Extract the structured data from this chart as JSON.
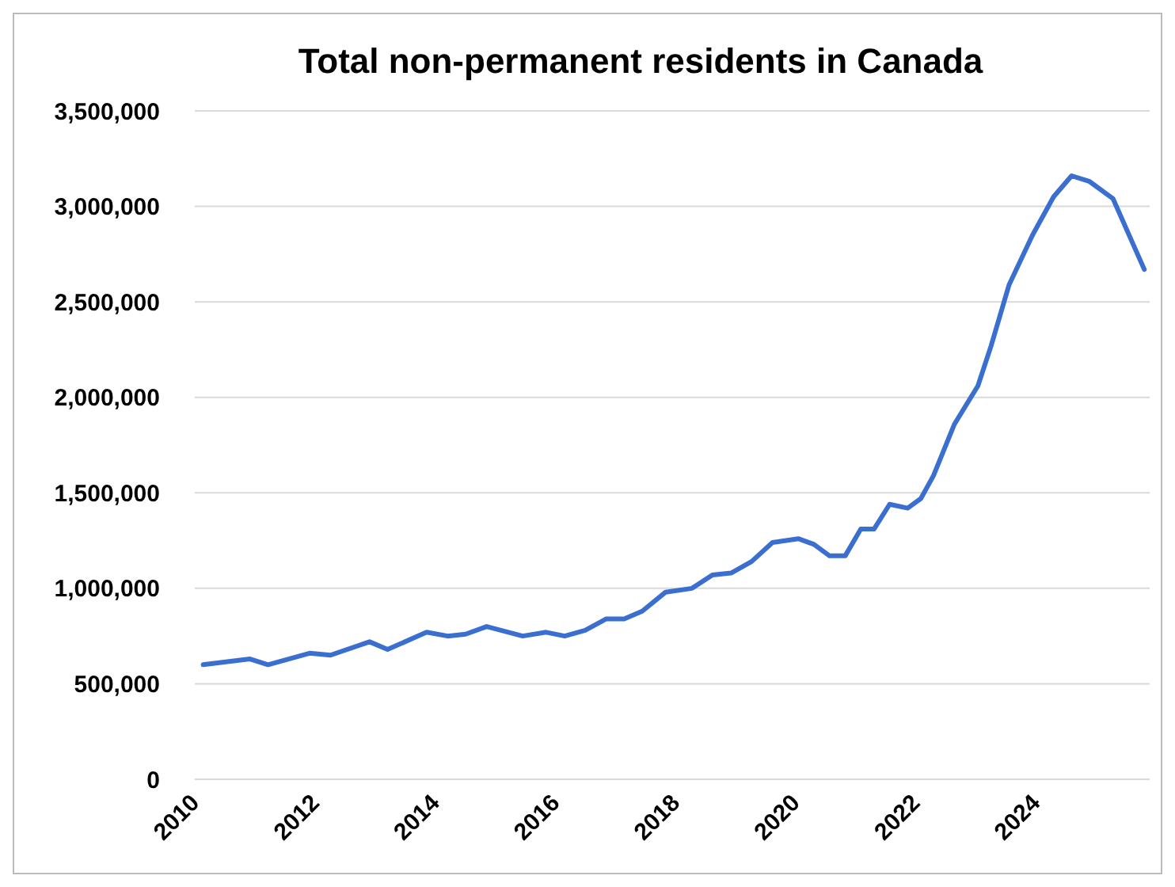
{
  "chart_data": {
    "type": "line",
    "title": "Total non-permanent residents in Canada",
    "x": [
      2010.14,
      2010.92,
      2011.22,
      2011.91,
      2012.26,
      2012.91,
      2013.21,
      2013.86,
      2014.21,
      2014.51,
      2014.86,
      2015.46,
      2015.85,
      2016.16,
      2016.5,
      2016.85,
      2017.15,
      2017.45,
      2017.84,
      2018.28,
      2018.62,
      2018.93,
      2019.27,
      2019.62,
      2020.05,
      2020.31,
      2020.57,
      2020.83,
      2021.09,
      2021.31,
      2021.57,
      2021.87,
      2022.09,
      2022.3,
      2022.65,
      2023.04,
      2023.26,
      2023.56,
      2023.95,
      2024.3,
      2024.6,
      2024.9,
      2025.29,
      2025.81
    ],
    "series": [
      {
        "color": "#3a6fd0",
        "values": [
          600000,
          630000,
          600000,
          660000,
          650000,
          720000,
          680000,
          770000,
          750000,
          760000,
          800000,
          750000,
          770000,
          750000,
          780000,
          840000,
          840000,
          880000,
          980000,
          1000000,
          1070000,
          1080000,
          1140000,
          1240000,
          1260000,
          1230000,
          1170000,
          1170000,
          1310000,
          1310000,
          1440000,
          1420000,
          1470000,
          1590000,
          1860000,
          2060000,
          2270000,
          2590000,
          2850000,
          3050000,
          3160000,
          3130000,
          3040000,
          2670000
        ]
      }
    ],
    "xlim": [
      2010,
      2025.9
    ],
    "xticks": [
      2010,
      2012,
      2014,
      2016,
      2018,
      2020,
      2022,
      2024
    ],
    "ylim": [
      0,
      3500000
    ],
    "yticks": [
      {
        "value": 0,
        "label": "0"
      },
      {
        "value": 500000,
        "label": "500,000"
      },
      {
        "value": 1000000,
        "label": "1,000,000"
      },
      {
        "value": 1500000,
        "label": "1,500,000"
      },
      {
        "value": 2000000,
        "label": "2,000,000"
      },
      {
        "value": 2500000,
        "label": "2,500,000"
      },
      {
        "value": 3000000,
        "label": "3,000,000"
      },
      {
        "value": 3500000,
        "label": "3,500,000"
      }
    ],
    "grid": "y",
    "marker": "none",
    "line_style": "solid"
  }
}
